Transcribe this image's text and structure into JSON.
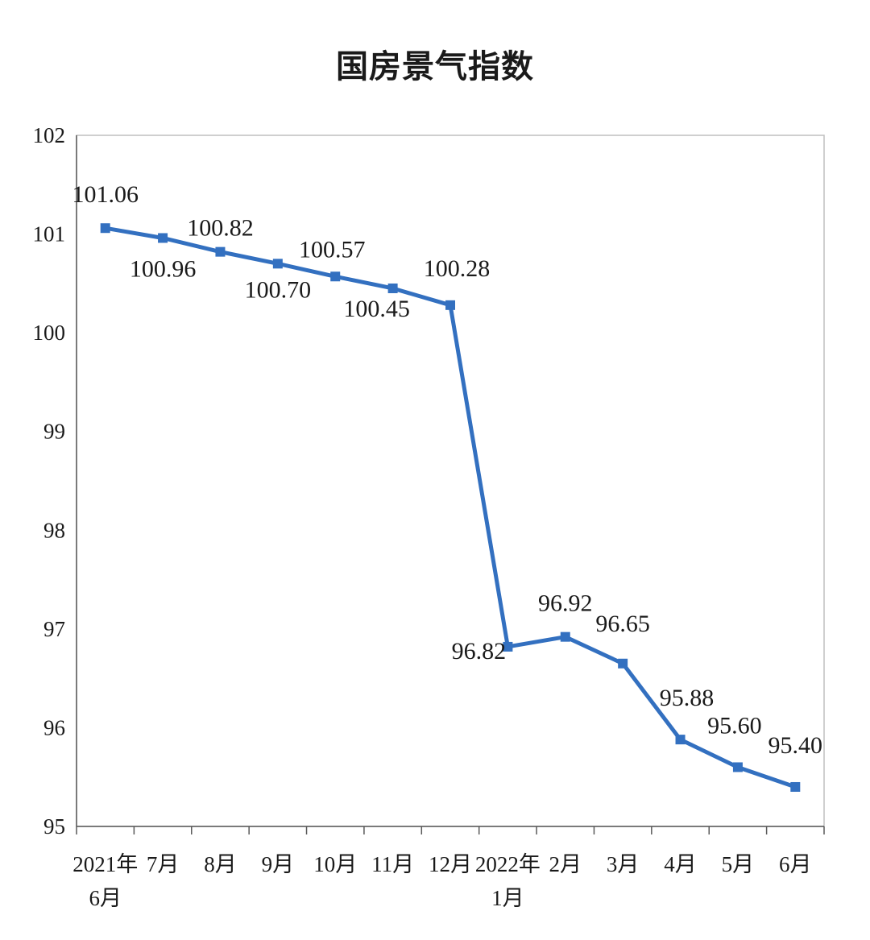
{
  "chart_data": {
    "type": "line",
    "title": "国房景气指数",
    "xlabel": "",
    "ylabel": "",
    "categories": [
      [
        "2021年",
        "6月"
      ],
      [
        "7月"
      ],
      [
        "8月"
      ],
      [
        "9月"
      ],
      [
        "10月"
      ],
      [
        "11月"
      ],
      [
        "12月"
      ],
      [
        "2022年",
        "1月"
      ],
      [
        "2月"
      ],
      [
        "3月"
      ],
      [
        "4月"
      ],
      [
        "5月"
      ],
      [
        "6月"
      ]
    ],
    "series": [
      {
        "values": [
          101.06,
          100.96,
          100.82,
          100.7,
          100.57,
          100.45,
          100.28,
          96.82,
          96.92,
          96.65,
          95.88,
          95.6,
          95.4
        ],
        "labels": [
          "101.06",
          "100.96",
          "100.82",
          "100.70",
          "100.57",
          "100.45",
          "100.28",
          "96.82",
          "96.92",
          "96.65",
          "95.88",
          "95.60",
          "95.40"
        ],
        "color": "#3370c0"
      }
    ],
    "ylim": [
      95,
      102
    ],
    "yticks": [
      "95",
      "96",
      "97",
      "98",
      "99",
      "100",
      "101",
      "102"
    ],
    "grid": false,
    "legend": "none"
  }
}
